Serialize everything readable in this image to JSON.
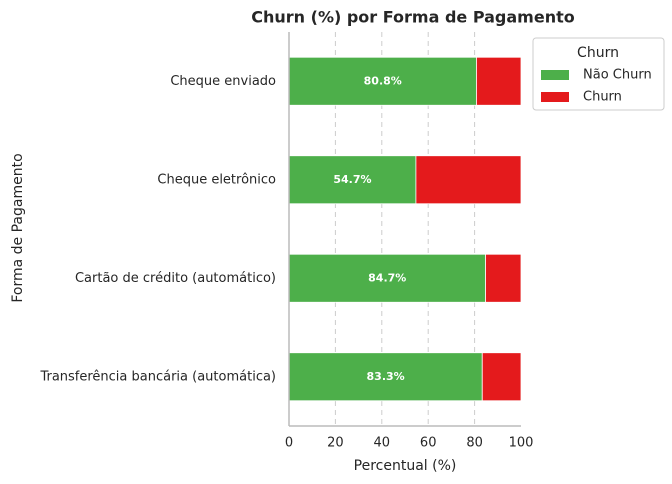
{
  "chart_data": {
    "type": "bar",
    "orientation": "horizontal",
    "stacked": true,
    "title": "Churn (%) por Forma de Pagamento",
    "xlabel": "Percentual (%)",
    "ylabel": "Forma de Pagamento",
    "categories": [
      "Cheque enviado",
      "Cheque eletrônico",
      "Cartão de crédito (automático)",
      "Transferência bancária (automática)"
    ],
    "series": [
      {
        "name": "Não Churn",
        "color": "#4daf4a",
        "values": [
          80.8,
          54.7,
          84.7,
          83.3
        ],
        "value_labels": [
          "80.8%",
          "54.7%",
          "84.7%",
          "83.3%"
        ]
      },
      {
        "name": "Churn",
        "color": "#e41a1c",
        "values": [
          19.2,
          45.3,
          15.3,
          16.7
        ]
      }
    ],
    "xlim": [
      0,
      100
    ],
    "xticks": [
      0,
      20,
      40,
      60,
      80,
      100
    ],
    "grid": true,
    "legend_title": "Churn",
    "legend": "upper right outside"
  }
}
